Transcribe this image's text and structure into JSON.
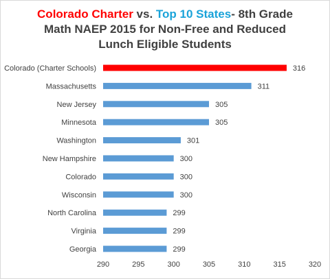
{
  "title": {
    "part1": "Colorado Charter",
    "part2": " vs. ",
    "part3": "Top 10 States",
    "part4": "- 8th Grade",
    "line2": "Math NAEP 2015 for Non-Free and Reduced",
    "line3": "Lunch Eligible Students"
  },
  "colors": {
    "highlight": "#ff0000",
    "bar": "#5b9bd5",
    "title_red": "#ff0000",
    "title_blue": "#1aa3d9"
  },
  "chart_data": {
    "type": "bar",
    "orientation": "horizontal",
    "title": "Colorado Charter vs. Top 10 States- 8th Grade Math NAEP 2015 for Non-Free and Reduced Lunch Eligible Students",
    "categories": [
      "Colorado (Charter Schools)",
      "Massachusetts",
      "New Jersey",
      "Minnesota",
      "Washington",
      "New Hampshire",
      "Colorado",
      "Wisconsin",
      "North Carolina",
      "Virginia",
      "Georgia"
    ],
    "values": [
      316,
      311,
      305,
      305,
      301,
      300,
      300,
      300,
      299,
      299,
      299
    ],
    "highlight_index": 0,
    "xlim": [
      290,
      320
    ],
    "xticks": [
      290,
      295,
      300,
      305,
      310,
      315,
      320
    ],
    "data_labels": true,
    "grid": false,
    "legend": "none",
    "xlabel": "",
    "ylabel": ""
  }
}
